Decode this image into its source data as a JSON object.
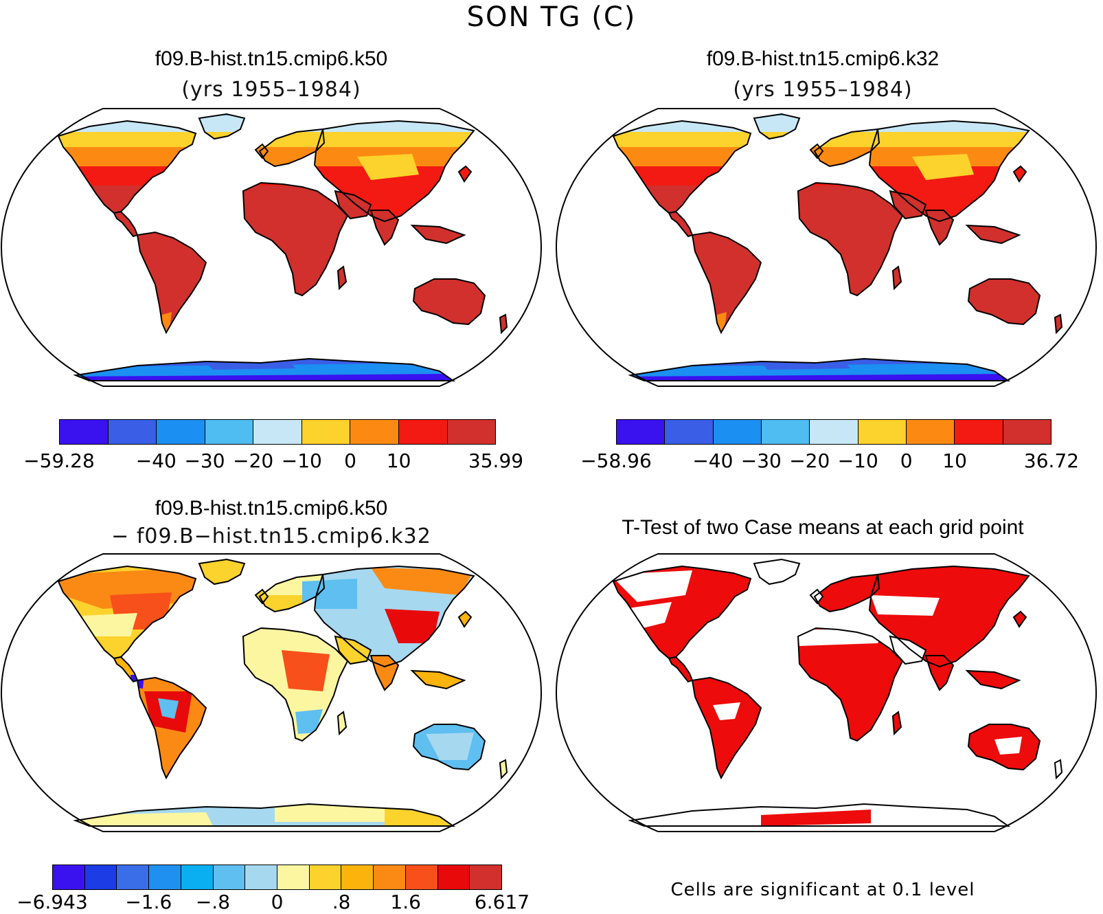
{
  "title": "SON TG (C)",
  "panels": [
    {
      "id": "k50",
      "title": "f09.B-hist.tn15.cmip6.k50",
      "subtitle": "(yrs 1955–1984)",
      "map_kind": "abs",
      "colorbar": {
        "colors": [
          "#3a12f0",
          "#3a5ee6",
          "#1c8ff2",
          "#4fbdf2",
          "#c7e7f6",
          "#fcd22c",
          "#fc8a12",
          "#f21a12",
          "#d1302c"
        ],
        "labels": [
          "−59.28",
          "−40",
          "−30",
          "−20",
          "−10",
          "0",
          "10",
          "35.99"
        ]
      }
    },
    {
      "id": "k32",
      "title": "f09.B-hist.tn15.cmip6.k32",
      "subtitle": "(yrs 1955–1984)",
      "map_kind": "abs",
      "colorbar": {
        "colors": [
          "#3a12f0",
          "#3a5ee6",
          "#1c8ff2",
          "#4fbdf2",
          "#c7e7f6",
          "#fcd22c",
          "#fc8a12",
          "#f21a12",
          "#d1302c"
        ],
        "labels": [
          "−58.96",
          "−40",
          "−30",
          "−20",
          "−10",
          "0",
          "10",
          "36.72"
        ]
      }
    },
    {
      "id": "diff",
      "title": "f09.B-hist.tn15.cmip6.k50",
      "subtitle": "− f09.B−hist.tn15.cmip6.k32",
      "map_kind": "diff",
      "colorbar": {
        "colors": [
          "#3a12f0",
          "#1c3ce6",
          "#3a6ee8",
          "#2090f0",
          "#0aaff2",
          "#5ebff0",
          "#a6d8f0",
          "#fdf6a0",
          "#fcd22c",
          "#fcb40c",
          "#fa8a14",
          "#f8501a",
          "#e80a0a",
          "#d1302c"
        ],
        "labels": [
          "−6.943",
          "−1.6",
          "−.8",
          "0",
          ".8",
          "1.6",
          "6.617"
        ]
      }
    },
    {
      "id": "ttest",
      "title": "T-Test of two Case means at each grid point",
      "subtitle": "",
      "map_kind": "ttest",
      "footnote": "Cells are significant at 0.1 level"
    }
  ]
}
